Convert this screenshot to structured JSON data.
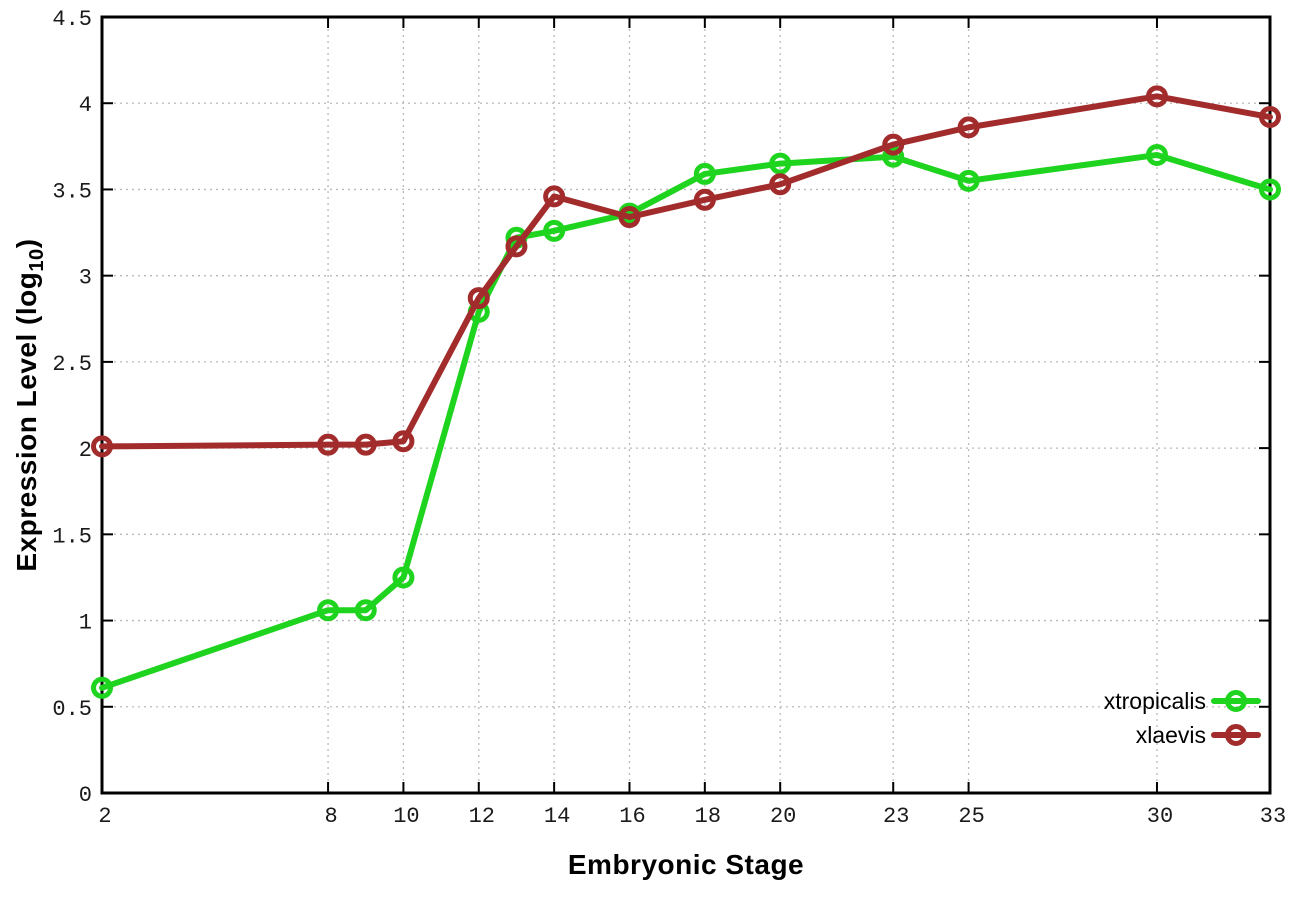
{
  "chart_data": {
    "type": "line",
    "title": "",
    "xlabel": "Embryonic Stage",
    "ylabel": "Expression Level (log10)",
    "ylabel_parts": {
      "main": "Expression Level (log",
      "sub": "10",
      "suffix": ")"
    },
    "xlim": [
      2,
      33
    ],
    "ylim": [
      0,
      4.5
    ],
    "x_tick_values": [
      2,
      8,
      10,
      12,
      14,
      16,
      18,
      20,
      23,
      25,
      30,
      33
    ],
    "x_tick_labels": [
      "2",
      "8",
      "10",
      "12",
      "14",
      "16",
      "18",
      "20",
      "23",
      "25",
      "30",
      "33"
    ],
    "y_tick_values": [
      0,
      0.5,
      1,
      1.5,
      2,
      2.5,
      3,
      3.5,
      4,
      4.5
    ],
    "y_tick_labels": [
      "0",
      "0.5",
      "1",
      "1.5",
      "2",
      "2.5",
      "3",
      "3.5",
      "4",
      "4.5"
    ],
    "grid": true,
    "legend_position": "bottom-right",
    "x": [
      2,
      8,
      9,
      10,
      12,
      13,
      14,
      16,
      18,
      20,
      23,
      25,
      30,
      33
    ],
    "series": [
      {
        "name": "xtropicalis",
        "color": "#1ed41e",
        "values": [
          0.61,
          1.06,
          1.06,
          1.25,
          2.79,
          3.22,
          3.26,
          3.36,
          3.59,
          3.65,
          3.69,
          3.55,
          3.7,
          3.5
        ]
      },
      {
        "name": "xlaevis",
        "color": "#a22c2c",
        "values": [
          2.01,
          2.02,
          2.02,
          2.04,
          2.87,
          3.17,
          3.46,
          3.34,
          3.44,
          3.53,
          3.76,
          3.86,
          4.04,
          3.92
        ]
      }
    ]
  },
  "colors": {
    "grid": "#b9b9b9",
    "border": "#000000",
    "tick": "#000000"
  }
}
